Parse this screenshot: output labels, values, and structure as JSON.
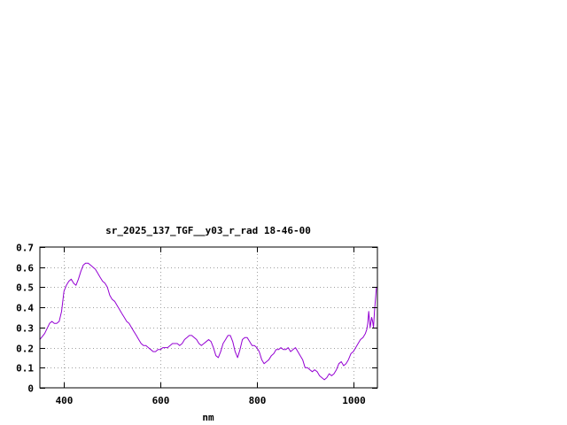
{
  "chart_data": {
    "type": "line",
    "title": "sr_2025_137_TGF__y03_r_rad 18-46-00",
    "xlabel": "nm",
    "ylabel": "",
    "xlim": [
      350,
      1050
    ],
    "ylim": [
      0,
      0.7
    ],
    "x_ticks": [
      400,
      600,
      800,
      1000
    ],
    "x_tick_labels": [
      "400",
      "600",
      "800",
      "1000"
    ],
    "y_ticks": [
      0,
      0.1,
      0.2,
      0.3,
      0.4,
      0.5,
      0.6,
      0.7
    ],
    "y_tick_labels": [
      "0",
      "0.1",
      "0.2",
      "0.3",
      "0.4",
      "0.5",
      "0.6",
      "0.7"
    ],
    "grid": true,
    "legend": "none",
    "series": [
      {
        "color": "#9400d3",
        "x": [
          350,
          360,
          370,
          375,
          380,
          385,
          390,
          395,
          400,
          405,
          410,
          415,
          420,
          425,
          430,
          435,
          440,
          445,
          450,
          455,
          460,
          465,
          470,
          475,
          480,
          485,
          490,
          495,
          500,
          505,
          510,
          515,
          520,
          525,
          530,
          535,
          540,
          545,
          550,
          555,
          560,
          565,
          570,
          575,
          580,
          585,
          590,
          595,
          600,
          605,
          610,
          615,
          620,
          625,
          630,
          635,
          640,
          645,
          650,
          655,
          660,
          665,
          670,
          675,
          680,
          685,
          690,
          695,
          700,
          705,
          710,
          715,
          720,
          725,
          730,
          735,
          740,
          745,
          750,
          755,
          760,
          765,
          770,
          775,
          780,
          785,
          790,
          795,
          800,
          805,
          810,
          815,
          820,
          825,
          830,
          835,
          840,
          845,
          850,
          855,
          860,
          865,
          870,
          875,
          880,
          885,
          890,
          895,
          900,
          905,
          910,
          915,
          920,
          925,
          930,
          935,
          940,
          945,
          950,
          955,
          960,
          965,
          970,
          975,
          980,
          985,
          990,
          995,
          1000,
          1005,
          1010,
          1015,
          1020,
          1025,
          1028,
          1030,
          1032,
          1035,
          1038,
          1040,
          1042,
          1044,
          1046,
          1048,
          1050
        ],
        "y": [
          0.24,
          0.27,
          0.32,
          0.33,
          0.32,
          0.32,
          0.33,
          0.38,
          0.48,
          0.51,
          0.53,
          0.54,
          0.52,
          0.51,
          0.54,
          0.58,
          0.61,
          0.62,
          0.62,
          0.61,
          0.6,
          0.59,
          0.57,
          0.55,
          0.53,
          0.52,
          0.5,
          0.46,
          0.44,
          0.43,
          0.41,
          0.39,
          0.37,
          0.35,
          0.33,
          0.32,
          0.3,
          0.28,
          0.26,
          0.24,
          0.22,
          0.21,
          0.21,
          0.2,
          0.19,
          0.18,
          0.18,
          0.19,
          0.19,
          0.2,
          0.2,
          0.2,
          0.21,
          0.22,
          0.22,
          0.22,
          0.21,
          0.22,
          0.24,
          0.25,
          0.26,
          0.26,
          0.25,
          0.24,
          0.22,
          0.21,
          0.22,
          0.23,
          0.24,
          0.23,
          0.2,
          0.16,
          0.15,
          0.18,
          0.22,
          0.24,
          0.26,
          0.26,
          0.23,
          0.18,
          0.15,
          0.19,
          0.24,
          0.25,
          0.25,
          0.23,
          0.21,
          0.21,
          0.2,
          0.18,
          0.14,
          0.12,
          0.13,
          0.14,
          0.16,
          0.17,
          0.19,
          0.19,
          0.2,
          0.19,
          0.19,
          0.2,
          0.18,
          0.19,
          0.2,
          0.18,
          0.16,
          0.14,
          0.1,
          0.1,
          0.09,
          0.08,
          0.09,
          0.08,
          0.06,
          0.05,
          0.04,
          0.05,
          0.07,
          0.06,
          0.07,
          0.09,
          0.12,
          0.13,
          0.11,
          0.12,
          0.14,
          0.17,
          0.18,
          0.2,
          0.22,
          0.24,
          0.25,
          0.27,
          0.29,
          0.32,
          0.38,
          0.3,
          0.35,
          0.33,
          0.3,
          0.38,
          0.44,
          0.5,
          0.5
        ]
      }
    ]
  }
}
